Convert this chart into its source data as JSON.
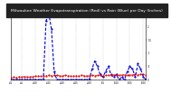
{
  "title": "Milwaukee Weather Evapotranspiration (Red) vs Rain (Blue) per Day (Inches)",
  "title_fontsize": 3.2,
  "background_color": "#ffffff",
  "title_bg": "#222222",
  "title_color": "#ffffff",
  "et_color": "#dd0000",
  "rain_color": "#0000dd",
  "grid_color": "#888888",
  "xlim": [
    0,
    50
  ],
  "ylim": [
    0,
    2.5
  ],
  "et_values": [
    0.08,
    0.1,
    0.09,
    0.11,
    0.1,
    0.12,
    0.11,
    0.1,
    0.12,
    0.13,
    0.14,
    0.13,
    0.14,
    0.15,
    0.16,
    0.15,
    0.17,
    0.16,
    0.15,
    0.14,
    0.16,
    0.15,
    0.14,
    0.13,
    0.15,
    0.14,
    0.16,
    0.15,
    0.14,
    0.15,
    0.16,
    0.15,
    0.17,
    0.16,
    0.15,
    0.16,
    0.17,
    0.16,
    0.18,
    0.17,
    0.16,
    0.18,
    0.19,
    0.18,
    0.17,
    0.19,
    0.2,
    0.19,
    0.21,
    0.2,
    0.19
  ],
  "rain_values": [
    0.0,
    0.0,
    0.0,
    0.0,
    0.0,
    0.0,
    0.0,
    0.0,
    0.0,
    0.0,
    0.0,
    0.0,
    0.0,
    2.2,
    2.5,
    1.9,
    0.3,
    0.0,
    0.0,
    0.0,
    0.0,
    0.0,
    0.0,
    0.0,
    0.0,
    0.0,
    0.0,
    0.0,
    0.0,
    0.0,
    0.4,
    0.7,
    0.5,
    0.2,
    0.1,
    0.3,
    0.5,
    0.2,
    0.1,
    0.2,
    0.0,
    0.1,
    0.0,
    0.3,
    0.5,
    0.4,
    0.1,
    0.6,
    0.4,
    0.1,
    0.0
  ],
  "xtick_positions": [
    0,
    4,
    9,
    14,
    19,
    24,
    29,
    34,
    39,
    44,
    49
  ],
  "xtick_labels": [
    "4/1",
    "4/5",
    "4/10",
    "4/15",
    "4/20",
    "4/25",
    "4/30",
    "5/5",
    "5/10",
    "5/15",
    "5/20"
  ],
  "ytick_values": [
    0,
    0.5,
    1.0,
    1.5,
    2.0,
    2.5
  ],
  "ytick_labels": [
    "0",
    ".5",
    "1",
    "1.5",
    "2",
    "2.5"
  ],
  "vgrid_positions": [
    0,
    4,
    9,
    14,
    19,
    24,
    29,
    34,
    39,
    44,
    49
  ]
}
